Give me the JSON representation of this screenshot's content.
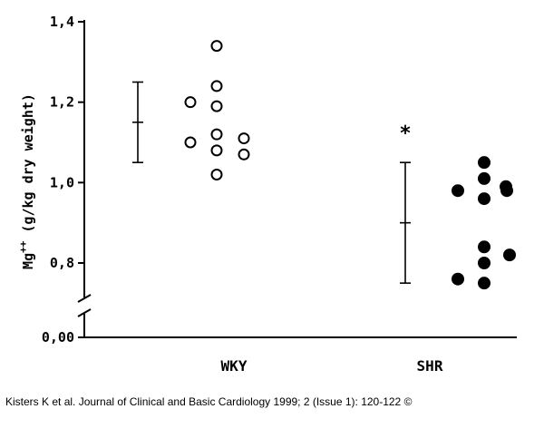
{
  "chart_data": {
    "type": "scatter",
    "ylabel_main": "Mg",
    "ylabel_sup": "++",
    "ylabel_rest": " (g/kg dry weight)",
    "ylim": [
      0.7,
      1.4
    ],
    "yticks": [
      {
        "value": 1.4,
        "label": "1,4"
      },
      {
        "value": 1.2,
        "label": "1,2"
      },
      {
        "value": 1.0,
        "label": "1,0"
      },
      {
        "value": 0.8,
        "label": "0,8"
      }
    ],
    "y_zero_label": "0,00",
    "y_axis_break": true,
    "categories": [
      "WKY",
      "SHR"
    ],
    "series": [
      {
        "category": "WKY",
        "marker": "open-circle",
        "mean": 1.15,
        "error_low": 1.05,
        "error_high": 1.25,
        "values": [
          1.2,
          1.1,
          1.34,
          1.24,
          1.19,
          1.12,
          1.08,
          1.02,
          1.11,
          1.07
        ]
      },
      {
        "category": "SHR",
        "marker": "filled-circle",
        "mean": 0.9,
        "error_low": 0.75,
        "error_high": 1.05,
        "values": [
          0.98,
          0.76,
          1.05,
          1.01,
          0.96,
          0.84,
          0.8,
          0.75,
          0.99,
          0.98,
          0.82
        ]
      }
    ],
    "annotations": [
      "*"
    ]
  },
  "caption": "Kisters K et al. Journal of Clinical and Basic Cardiology 1999; 2 (Issue 1): 120-122 ©"
}
